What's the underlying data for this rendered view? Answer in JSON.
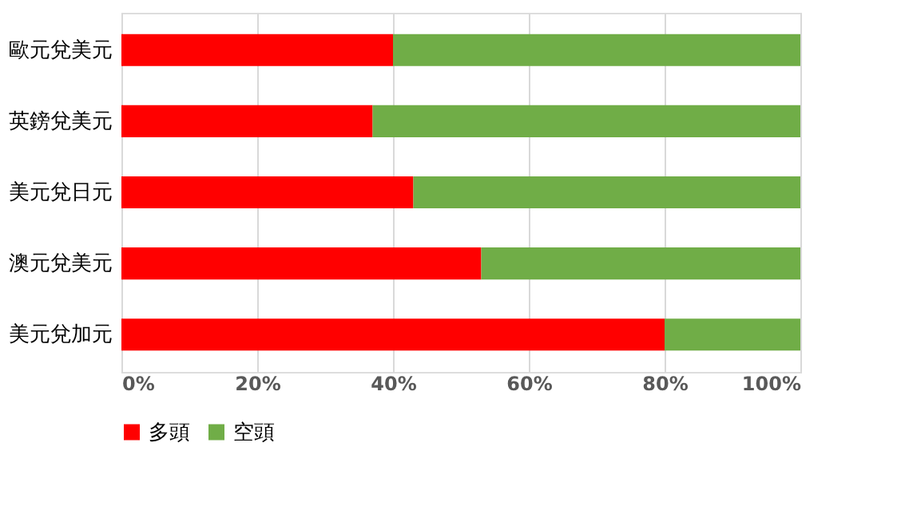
{
  "chart_data": {
    "type": "bar",
    "orientation": "horizontal",
    "stacked": true,
    "categories": [
      "歐元兌美元",
      "英鎊兌美元",
      "美元兌日元",
      "澳元兌美元",
      "美元兌加元"
    ],
    "series": [
      {
        "name": "多頭",
        "color": "#ff0000",
        "values": [
          40,
          37,
          43,
          53,
          80
        ]
      },
      {
        "name": "空頭",
        "color": "#70ad47",
        "values": [
          60,
          63,
          57,
          47,
          20
        ]
      }
    ],
    "xlim": [
      0,
      100
    ],
    "xticks": [
      {
        "value": 0,
        "label": "0%"
      },
      {
        "value": 20,
        "label": "20%"
      },
      {
        "value": 40,
        "label": "40%"
      },
      {
        "value": 60,
        "label": "60%"
      },
      {
        "value": 80,
        "label": "80%"
      },
      {
        "value": 100,
        "label": "100%"
      }
    ],
    "grid": "x",
    "legend": "bottom"
  }
}
